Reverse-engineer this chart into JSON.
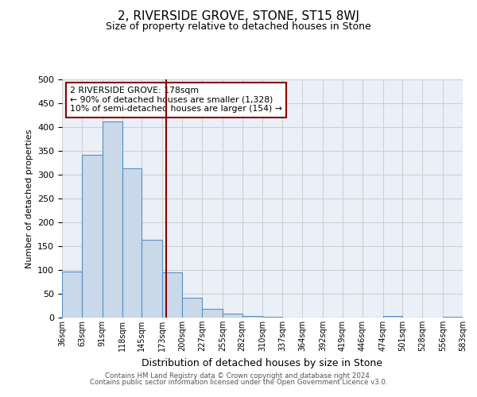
{
  "title": "2, RIVERSIDE GROVE, STONE, ST15 8WJ",
  "subtitle": "Size of property relative to detached houses in Stone",
  "xlabel": "Distribution of detached houses by size in Stone",
  "ylabel": "Number of detached properties",
  "bar_edges": [
    36,
    63,
    91,
    118,
    145,
    173,
    200,
    227,
    255,
    282,
    310,
    337,
    364,
    392,
    419,
    446,
    474,
    501,
    528,
    556,
    583
  ],
  "bar_heights": [
    97,
    341,
    412,
    313,
    163,
    95,
    42,
    19,
    8,
    4,
    1,
    0,
    0,
    0,
    0,
    0,
    3,
    0,
    0,
    2
  ],
  "tick_labels": [
    "36sqm",
    "63sqm",
    "91sqm",
    "118sqm",
    "145sqm",
    "173sqm",
    "200sqm",
    "227sqm",
    "255sqm",
    "282sqm",
    "310sqm",
    "337sqm",
    "364sqm",
    "392sqm",
    "419sqm",
    "446sqm",
    "474sqm",
    "501sqm",
    "528sqm",
    "556sqm",
    "583sqm"
  ],
  "bar_facecolor": "#c9d9ea",
  "bar_edgecolor": "#5a8fc2",
  "vline_x": 178,
  "vline_color": "#8b0000",
  "annotation_box_edgecolor": "#8b0000",
  "annotation_line1": "2 RIVERSIDE GROVE: 178sqm",
  "annotation_line2": "← 90% of detached houses are smaller (1,328)",
  "annotation_line3": "10% of semi-detached houses are larger (154) →",
  "ylim": [
    0,
    500
  ],
  "yticks": [
    0,
    50,
    100,
    150,
    200,
    250,
    300,
    350,
    400,
    450,
    500
  ],
  "grid_color": "#d0d0d0",
  "bg_color": "#eaf0f8",
  "footer1": "Contains HM Land Registry data © Crown copyright and database right 2024.",
  "footer2": "Contains public sector information licensed under the Open Government Licence v3.0."
}
